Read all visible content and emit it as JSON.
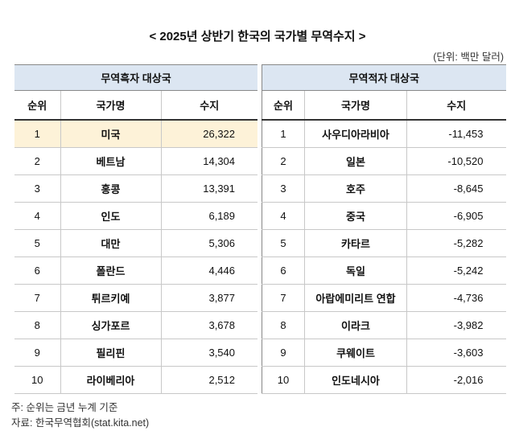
{
  "header": {
    "title": "< 2025년 상반기 한국의 국가별 무역수지 >",
    "unit": "(단위: 백만 달러)"
  },
  "tables": [
    {
      "title": "무역흑자 대상국",
      "columns": [
        "순위",
        "국가명",
        "수지"
      ],
      "rows": [
        [
          "1",
          "미국",
          "26,322"
        ],
        [
          "2",
          "베트남",
          "14,304"
        ],
        [
          "3",
          "홍콩",
          "13,391"
        ],
        [
          "4",
          "인도",
          "6,189"
        ],
        [
          "5",
          "대만",
          "5,306"
        ],
        [
          "6",
          "폴란드",
          "4,446"
        ],
        [
          "7",
          "튀르키예",
          "3,877"
        ],
        [
          "8",
          "싱가포르",
          "3,678"
        ],
        [
          "9",
          "필리핀",
          "3,540"
        ],
        [
          "10",
          "라이베리아",
          "2,512"
        ]
      ]
    },
    {
      "title": "무역적자 대상국",
      "columns": [
        "순위",
        "국가명",
        "수지"
      ],
      "rows": [
        [
          "1",
          "사우디아라비아",
          "-11,453"
        ],
        [
          "2",
          "일본",
          "-10,520"
        ],
        [
          "3",
          "호주",
          "-8,645"
        ],
        [
          "4",
          "중국",
          "-6,905"
        ],
        [
          "5",
          "카타르",
          "-5,282"
        ],
        [
          "6",
          "독일",
          "-5,242"
        ],
        [
          "7",
          "아랍에미리트 연합",
          "-4,736"
        ],
        [
          "8",
          "이라크",
          "-3,982"
        ],
        [
          "9",
          "쿠웨이트",
          "-3,603"
        ],
        [
          "10",
          "인도네시아",
          "-2,016"
        ]
      ]
    }
  ],
  "footer": [
    "주: 순위는 금년 누계 기준",
    "자료: 한국무역협회(stat.kita.net)"
  ]
}
